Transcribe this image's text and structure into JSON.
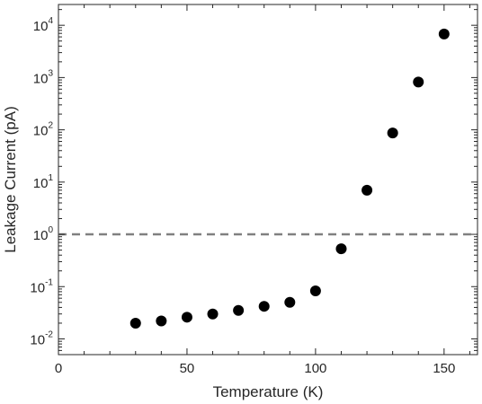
{
  "chart_data": {
    "type": "scatter",
    "title": "",
    "xlabel": "Temperature (K)",
    "ylabel": "Leakage Current (pA)",
    "xlim": [
      0,
      163
    ],
    "ylim": [
      0.005,
      25000
    ],
    "yscale": "log",
    "x_ticks": [
      0,
      50,
      100,
      150
    ],
    "y_ticks": [
      {
        "value": 0.01,
        "base": "10",
        "exp": "-2"
      },
      {
        "value": 0.1,
        "base": "10",
        "exp": "-1"
      },
      {
        "value": 1,
        "base": "10",
        "exp": "0"
      },
      {
        "value": 10,
        "base": "10",
        "exp": "1"
      },
      {
        "value": 100,
        "base": "10",
        "exp": "2"
      },
      {
        "value": 1000,
        "base": "10",
        "exp": "3"
      },
      {
        "value": 10000,
        "base": "10",
        "exp": "4"
      }
    ],
    "x": [
      30,
      40,
      50,
      60,
      70,
      80,
      90,
      100,
      110,
      120,
      130,
      140,
      150
    ],
    "y": [
      0.02,
      0.022,
      0.026,
      0.03,
      0.035,
      0.042,
      0.05,
      0.083,
      0.53,
      7.0,
      87,
      820,
      6800
    ],
    "reference_line": {
      "y": 1,
      "style": "dashed",
      "color": "#808080"
    },
    "marker_color": "#000000",
    "grid": false
  }
}
